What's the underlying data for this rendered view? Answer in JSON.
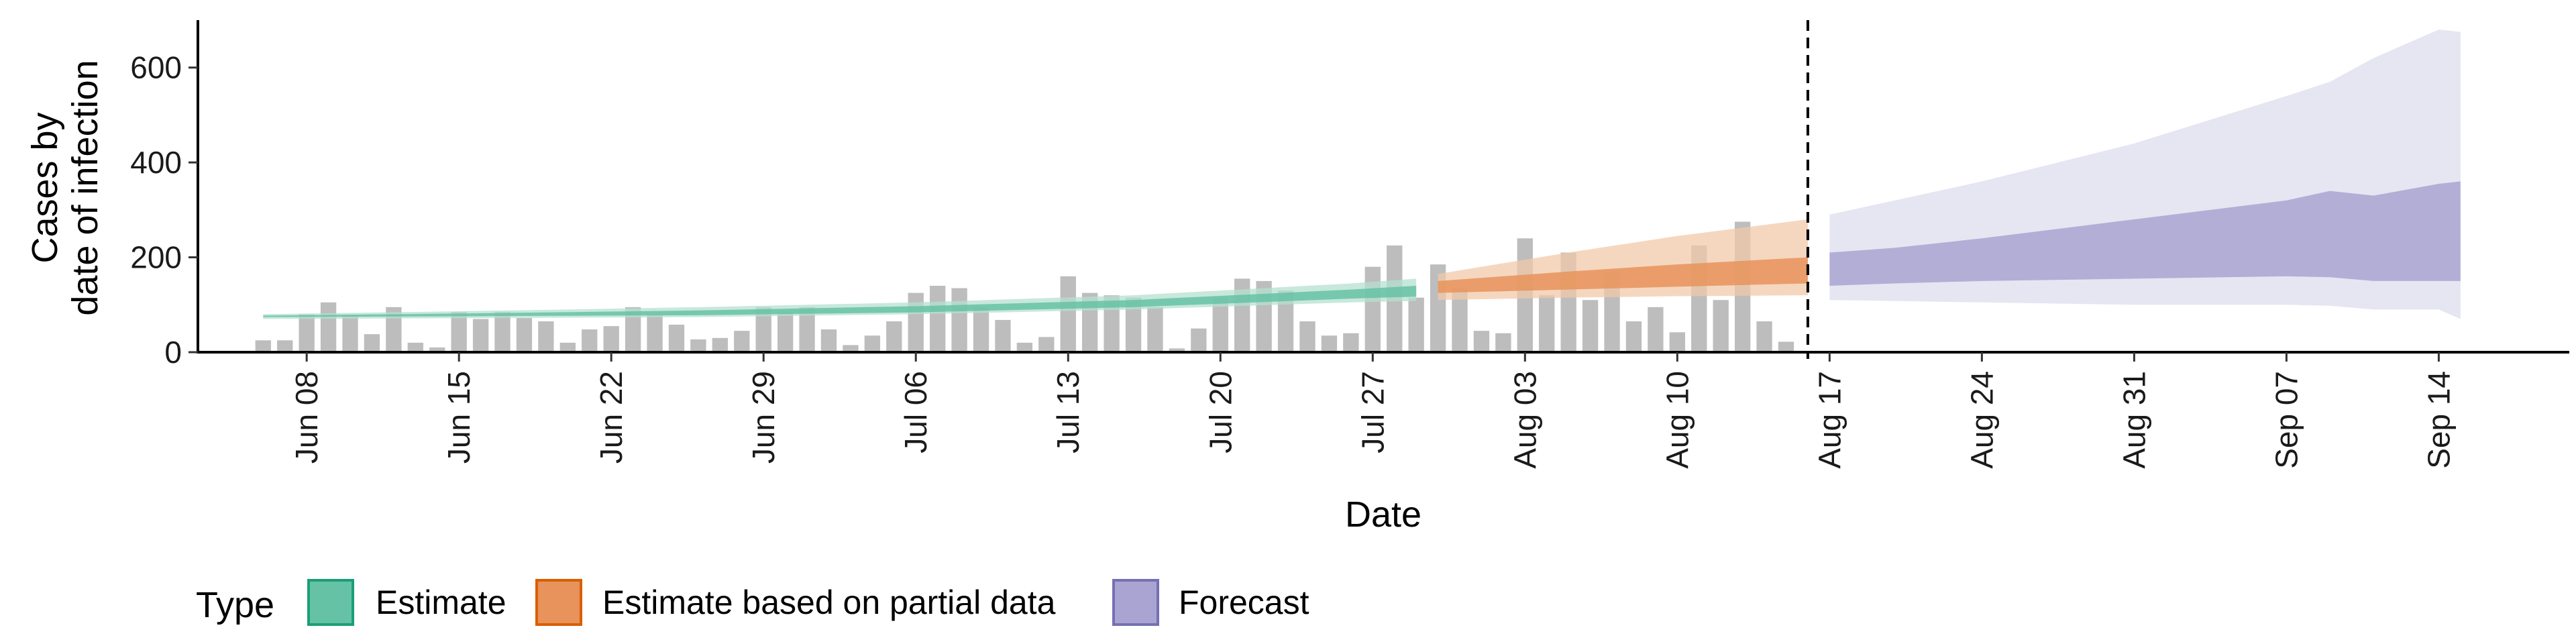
{
  "chart_data": {
    "type": "bar",
    "xlabel": "Date",
    "ylabel_lines": [
      "Cases by",
      "date of infection"
    ],
    "ylim": [
      0,
      700
    ],
    "yticks": [
      0,
      200,
      400,
      600
    ],
    "xlim": [
      "2022-06-03",
      "2022-09-20"
    ],
    "xticks": [
      {
        "date": "2022-06-08",
        "label": "Jun 08"
      },
      {
        "date": "2022-06-15",
        "label": "Jun 15"
      },
      {
        "date": "2022-06-22",
        "label": "Jun 22"
      },
      {
        "date": "2022-06-29",
        "label": "Jun 29"
      },
      {
        "date": "2022-07-06",
        "label": "Jul 06"
      },
      {
        "date": "2022-07-13",
        "label": "Jul 13"
      },
      {
        "date": "2022-07-20",
        "label": "Jul 20"
      },
      {
        "date": "2022-07-27",
        "label": "Jul 27"
      },
      {
        "date": "2022-08-03",
        "label": "Aug 03"
      },
      {
        "date": "2022-08-10",
        "label": "Aug 10"
      },
      {
        "date": "2022-08-17",
        "label": "Aug 17"
      },
      {
        "date": "2022-08-24",
        "label": "Aug 24"
      },
      {
        "date": "2022-08-31",
        "label": "Aug 31"
      },
      {
        "date": "2022-09-07",
        "label": "Sep 07"
      },
      {
        "date": "2022-09-14",
        "label": "Sep 14"
      }
    ],
    "vline_date": "2022-08-16",
    "grid": false,
    "legend": {
      "title": "Type",
      "position": "bottom",
      "entries": [
        {
          "label": "Estimate",
          "fill": "#66c2a5",
          "stroke": "#1b9e77"
        },
        {
          "label": "Estimate based on partial data",
          "fill": "#e8935b",
          "stroke": "#d95f02"
        },
        {
          "label": "Forecast",
          "fill": "#a9a4d1",
          "stroke": "#7570b3"
        }
      ]
    },
    "colors": {
      "bars": "#bdbdbd",
      "estimate_outer": "#b5e0d0",
      "estimate_inner": "#66c2a5",
      "partial_outer": "#f2c9ab",
      "partial_inner": "#e8935b",
      "forecast_outer": "#dedcee",
      "forecast_inner": "#a9a4d1"
    },
    "bars": {
      "start_date": "2022-06-06",
      "values": [
        25,
        25,
        80,
        105,
        78,
        38,
        95,
        20,
        10,
        85,
        70,
        85,
        72,
        65,
        20,
        48,
        55,
        95,
        80,
        58,
        27,
        30,
        45,
        95,
        85,
        95,
        48,
        15,
        35,
        65,
        125,
        140,
        135,
        95,
        68,
        20,
        32,
        160,
        125,
        120,
        115,
        95,
        8,
        50,
        115,
        155,
        150,
        130,
        65,
        35,
        40,
        180,
        225,
        115,
        185,
        135,
        45,
        40,
        240,
        120,
        210,
        110,
        170,
        65,
        95,
        42,
        225,
        110,
        275,
        65,
        22
      ]
    },
    "bands": [
      {
        "name": "Estimate",
        "x": [
          "2022-06-06",
          "2022-06-16",
          "2022-06-26",
          "2022-07-06",
          "2022-07-16",
          "2022-07-26",
          "2022-07-29"
        ],
        "outer_low": [
          70,
          72,
          74,
          80,
          90,
          105,
          108
        ],
        "outer_high": [
          80,
          87,
          95,
          105,
          120,
          145,
          155
        ],
        "inner_low": [
          74,
          76,
          78,
          84,
          95,
          113,
          117
        ],
        "inner_high": [
          77,
          82,
          88,
          97,
          110,
          132,
          140
        ]
      },
      {
        "name": "Estimate based on partial data",
        "x": [
          "2022-07-30",
          "2022-08-05",
          "2022-08-10",
          "2022-08-16"
        ],
        "outer_low": [
          110,
          115,
          118,
          120
        ],
        "outer_high": [
          165,
          210,
          245,
          280
        ],
        "inner_low": [
          125,
          132,
          138,
          145
        ],
        "inner_high": [
          150,
          170,
          185,
          200
        ]
      },
      {
        "name": "Forecast",
        "x": [
          "2022-08-17",
          "2022-08-20",
          "2022-08-24",
          "2022-08-31",
          "2022-09-07",
          "2022-09-09",
          "2022-09-11",
          "2022-09-14",
          "2022-09-15"
        ],
        "outer_low": [
          110,
          108,
          105,
          100,
          100,
          98,
          90,
          90,
          70
        ],
        "outer_high": [
          290,
          320,
          360,
          440,
          540,
          570,
          620,
          680,
          675
        ],
        "inner_low": [
          140,
          145,
          150,
          155,
          160,
          158,
          150,
          150,
          150
        ],
        "inner_high": [
          210,
          220,
          240,
          280,
          320,
          340,
          330,
          355,
          360
        ]
      }
    ]
  }
}
